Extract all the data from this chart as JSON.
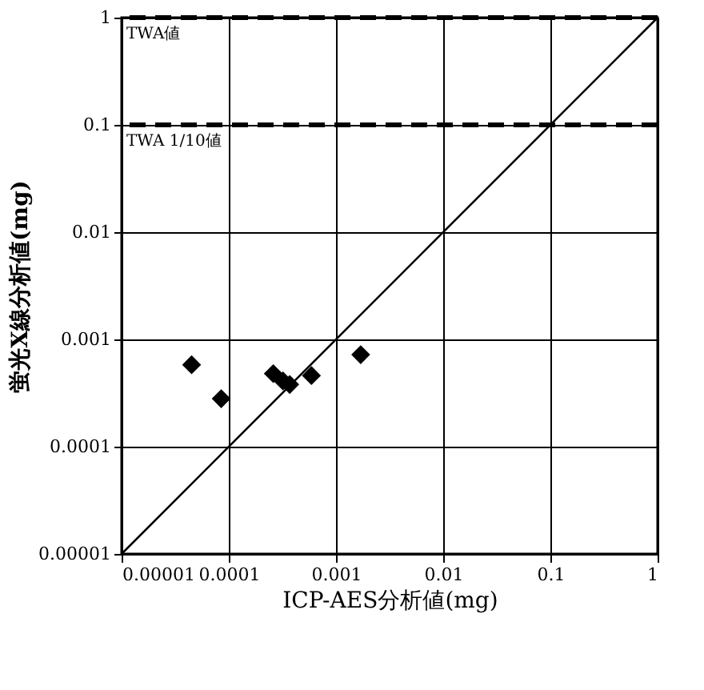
{
  "chart_data": {
    "type": "scatter",
    "xlabel": "ICP-AES分析値(mg)",
    "ylabel": "蛍光X線分析値(mg)",
    "log": "xy",
    "grid": true,
    "marker": "diamond",
    "legend": false,
    "xlim": [
      1e-05,
      1
    ],
    "ylim": [
      1e-05,
      1
    ],
    "xticks": [
      {
        "value": 1e-05,
        "label": "0.00001"
      },
      {
        "value": 0.0001,
        "label": "0.0001"
      },
      {
        "value": 0.001,
        "label": "0.001"
      },
      {
        "value": 0.01,
        "label": "0.01"
      },
      {
        "value": 0.1,
        "label": "0.1"
      },
      {
        "value": 1,
        "label": "1"
      }
    ],
    "yticks": [
      {
        "value": 1e-05,
        "label": "0.00001"
      },
      {
        "value": 0.0001,
        "label": "0.0001"
      },
      {
        "value": 0.001,
        "label": "0.001"
      },
      {
        "value": 0.01,
        "label": "0.01"
      },
      {
        "value": 0.1,
        "label": "0.1"
      },
      {
        "value": 1,
        "label": "1"
      }
    ],
    "series": [
      {
        "color": "#000000",
        "x": [
          4.5e-05,
          8.5e-05,
          0.00026,
          0.00032,
          0.00037,
          0.00059,
          0.0017
        ],
        "values": [
          0.00058,
          0.00028,
          0.00048,
          0.00041,
          0.00038,
          0.00046,
          0.00072
        ]
      },
      {
        "type": "line",
        "marker": "none",
        "color": "#000000",
        "x": [
          1e-05,
          1
        ],
        "values": [
          1e-05,
          1
        ]
      }
    ],
    "ref_lines": [
      {
        "axis": "y",
        "value": 1,
        "label": "TWA値",
        "line_style": "dashed",
        "color": "#000000"
      },
      {
        "axis": "y",
        "value": 0.1,
        "label": "TWA 1/10値",
        "line_style": "dashed",
        "color": "#000000"
      }
    ]
  }
}
